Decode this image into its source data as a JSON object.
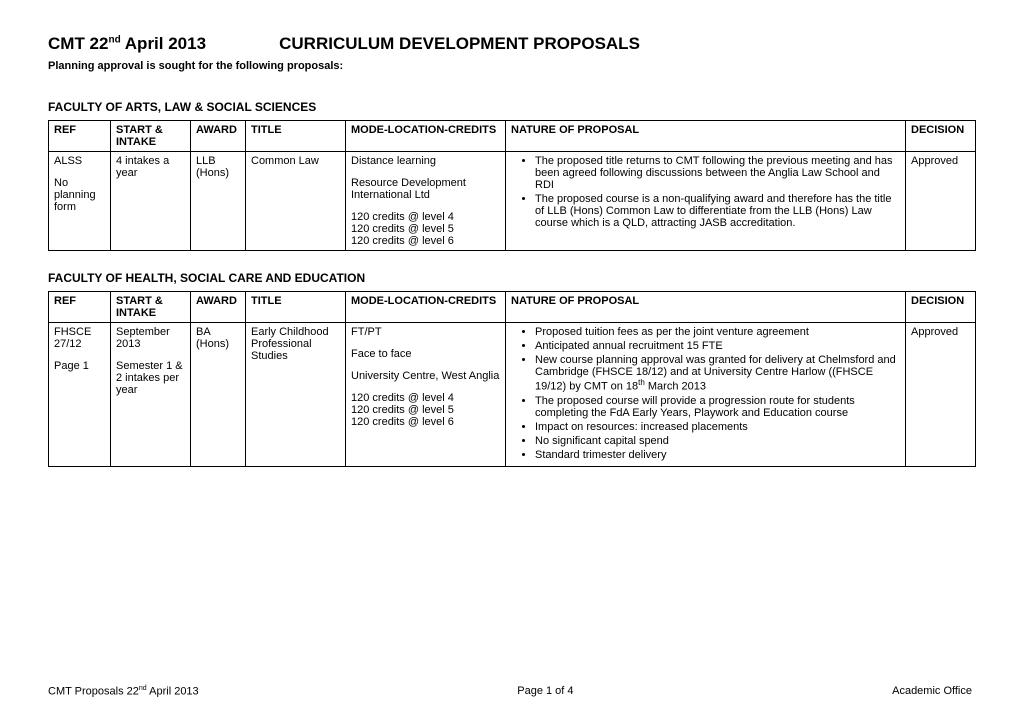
{
  "header": {
    "date_prefix": "CMT 22",
    "date_suffix": " April 2013",
    "ordinal": "nd",
    "title": "CURRICULUM DEVELOPMENT PROPOSALS",
    "subline": "Planning approval is sought for the following proposals:"
  },
  "cols": {
    "ref": "REF",
    "start": "START & INTAKE",
    "award": "AWARD",
    "title": "TITLE",
    "mode": "MODE-LOCATION-CREDITS",
    "nature": "NATURE OF PROPOSAL",
    "decision": "DECISION"
  },
  "faculty1": {
    "name": "FACULTY OF ARTS, LAW & SOCIAL SCIENCES",
    "row": {
      "ref_a": "ALSS",
      "ref_b": "No planning form",
      "start": "4 intakes a year",
      "award": "LLB (Hons)",
      "title": "Common Law",
      "mode_a": "Distance learning",
      "mode_b": "Resource Development International Ltd",
      "mode_c": "120 credits @ level 4",
      "mode_d": "120 credits @ level 5",
      "mode_e": "120 credits @ level 6",
      "nat1": "The proposed title returns to CMT following the previous meeting and has been agreed following discussions between the Anglia Law School and RDI",
      "nat2": "The proposed course is a non-qualifying award and therefore has the title of LLB (Hons) Common Law to differentiate from the LLB (Hons) Law course which is a QLD, attracting JASB accreditation.",
      "decision": "Approved"
    }
  },
  "faculty2": {
    "name": "FACULTY OF HEALTH, SOCIAL CARE AND EDUCATION",
    "row": {
      "ref_a": "FHSCE 27/12",
      "ref_b": "Page 1",
      "start_a": "September 2013",
      "start_b": "Semester 1 &  2 intakes per year",
      "award": "BA (Hons)",
      "title": "Early Childhood Professional Studies",
      "mode_a": "FT/PT",
      "mode_b": "Face to face",
      "mode_c": "University Centre, West Anglia",
      "mode_d": "120 credits @ level 4",
      "mode_e": "120 credits @ level 5",
      "mode_f": "120 credits @ level 6",
      "nat1": "Proposed tuition fees as per the joint venture agreement",
      "nat2": "Anticipated annual recruitment 15 FTE",
      "nat3a": "New course planning approval was granted for delivery at Chelmsford and Cambridge (FHSCE 18/12) and at University Centre Harlow ((FHSCE 19/12) by CMT on 18",
      "nat3b": " March 2013",
      "nat3_ord": "th",
      "nat4": "The proposed course will provide a progression route for students completing the FdA Early Years, Playwork and Education course",
      "nat5": "Impact on resources: increased placements",
      "nat6": "No significant capital spend",
      "nat7": "Standard trimester delivery",
      "decision": "Approved"
    }
  },
  "footer": {
    "left_a": "CMT Proposals 22",
    "left_ord": "nd",
    "left_b": " April 2013",
    "center": "Page 1 of 4",
    "right": "Academic Office"
  }
}
